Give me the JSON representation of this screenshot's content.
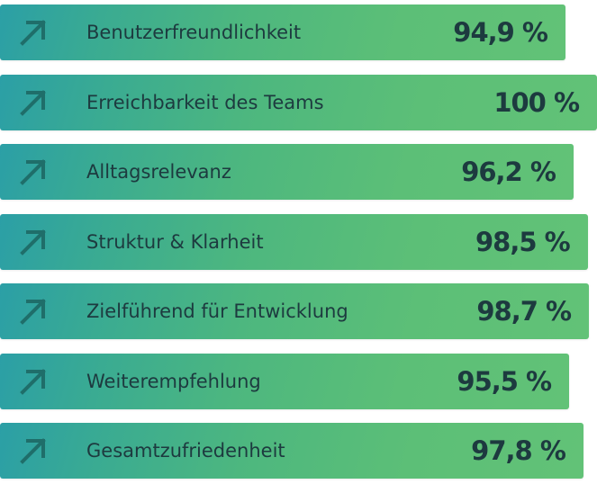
{
  "chart_data": {
    "type": "bar",
    "orientation": "horizontal",
    "categories": [
      "Benutzerfreundlichkeit",
      "Erreichbarkeit des Teams",
      "Alltagsrelevanz",
      "Struktur & Klarheit",
      "Zielführend für Entwicklung",
      "Weiterempfehlung",
      "Gesamtzufriedenheit"
    ],
    "values": [
      94.9,
      100,
      96.2,
      98.5,
      98.7,
      95.5,
      97.8
    ],
    "value_labels": [
      "94,9 %",
      "100 %",
      "96,2 %",
      "98,5 %",
      "98,7 %",
      "95,5 %",
      "97,8 %"
    ],
    "title": "",
    "xlabel": "",
    "ylabel": "",
    "grid": false,
    "legend": "none",
    "icon": "arrow-up-right-icon",
    "colors": {
      "bar_start": "#2b9fa6",
      "bar_end": "#62c277",
      "text": "#1d3a3f",
      "arrow": "#1f6e6a"
    }
  }
}
